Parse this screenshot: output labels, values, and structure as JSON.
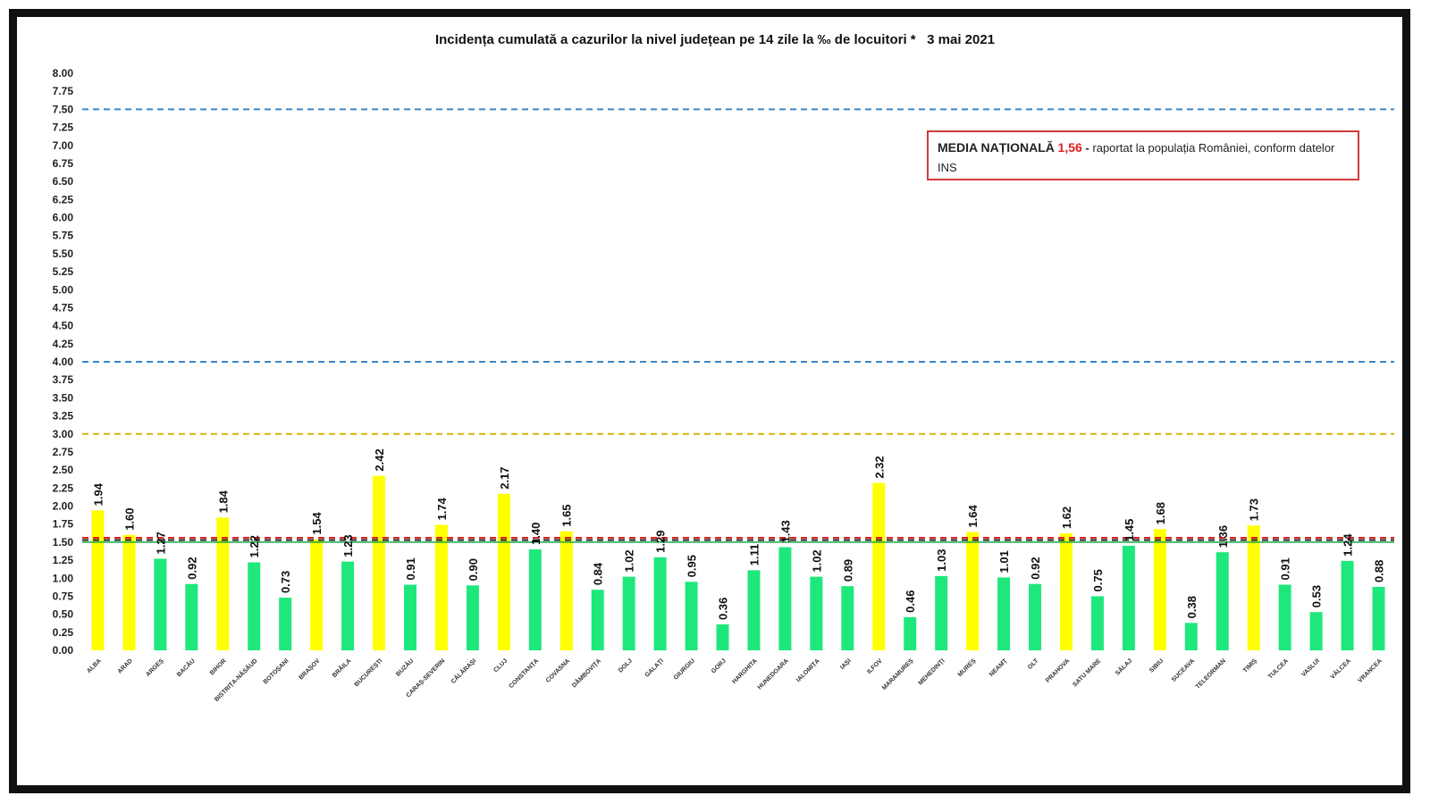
{
  "chart_data": {
    "type": "bar",
    "title": "Incidența cumulată a cazurilor la nivel județean pe 14 zile la ‰ de locuitori *   3 mai 2021",
    "xlabel": "",
    "ylabel": "",
    "ylim": [
      0,
      8
    ],
    "ytick_step": 0.25,
    "grid": false,
    "categories": [
      "ALBA",
      "ARAD",
      "ARGEȘ",
      "BACĂU",
      "BIHOR",
      "BISTRIȚA-NĂSĂUD",
      "BOTOȘANI",
      "BRAȘOV",
      "BRĂILA",
      "BUCUREȘTI",
      "BUZĂU",
      "CARAȘ-SEVERIN",
      "CĂLĂRAȘI",
      "CLUJ",
      "CONSTANȚA",
      "COVASNA",
      "DÂMBOVIȚA",
      "DOLJ",
      "GALAȚI",
      "GIURGIU",
      "GORJ",
      "HARGHITA",
      "HUNEDOARA",
      "IALOMIȚA",
      "IAȘI",
      "ILFOV",
      "MARAMUREȘ",
      "MEHEDINȚI",
      "MUREȘ",
      "NEAMȚ",
      "OLT",
      "PRAHOVA",
      "SATU MARE",
      "SĂLAJ",
      "SIBIU",
      "SUCEAVA",
      "TELEORMAN",
      "TIMIȘ",
      "TULCEA",
      "VASLUI",
      "VÂLCEA",
      "VRANCEA"
    ],
    "values": [
      1.94,
      1.6,
      1.27,
      0.92,
      1.84,
      1.22,
      0.73,
      1.54,
      1.23,
      2.42,
      0.91,
      1.74,
      0.9,
      2.17,
      1.4,
      1.65,
      0.84,
      1.02,
      1.29,
      0.95,
      0.36,
      1.11,
      1.43,
      1.02,
      0.89,
      2.32,
      0.46,
      1.03,
      1.64,
      1.01,
      0.92,
      1.62,
      0.75,
      1.45,
      1.68,
      0.38,
      1.36,
      1.73,
      0.91,
      0.53,
      1.24,
      0.88
    ],
    "value_labels": [
      "1.94",
      "1.60",
      "1.27",
      "0.92",
      "1.84",
      "1.22",
      "0.73",
      "1.54",
      "1.23",
      "2.42",
      "0.91",
      "1.74",
      "0.90",
      "2.17",
      "1.40",
      "1.65",
      "0.84",
      "1.02",
      "1.29",
      "0.95",
      "0.36",
      "1.11",
      "1.43",
      "1.02",
      "0.89",
      "2.32",
      "0.46",
      "1.03",
      "1.64",
      "1.01",
      "0.92",
      "1.62",
      "0.75",
      "1.45",
      "1.68",
      "0.38",
      "1.36",
      "1.73",
      "0.91",
      "0.53",
      "1.24",
      "0.88"
    ],
    "threshold_lines": [
      {
        "value": 7.5,
        "color": "#3a86c8",
        "style": "dashed"
      },
      {
        "value": 4.0,
        "color": "#3a86c8",
        "style": "dashed"
      },
      {
        "value": 3.0,
        "color": "#d4b400",
        "style": "dashed"
      },
      {
        "value": 1.56,
        "color": "#e02020",
        "style": "dashed"
      },
      {
        "value": 1.5,
        "color": "#1aa64a",
        "style": "solid"
      },
      {
        "value": 1.53,
        "color": "#222222",
        "style": "dashed"
      }
    ],
    "colors": {
      "above_1_5": "#ffff00",
      "below_1_5": "#1ee87c",
      "axis_text": "#222222"
    }
  },
  "legend_box": {
    "label": "MEDIA NAȚIONALĂ",
    "value": "1,56",
    "separator": "-",
    "text": "raportat la populația României, conform datelor INS",
    "border_color": "#d23a3a"
  }
}
